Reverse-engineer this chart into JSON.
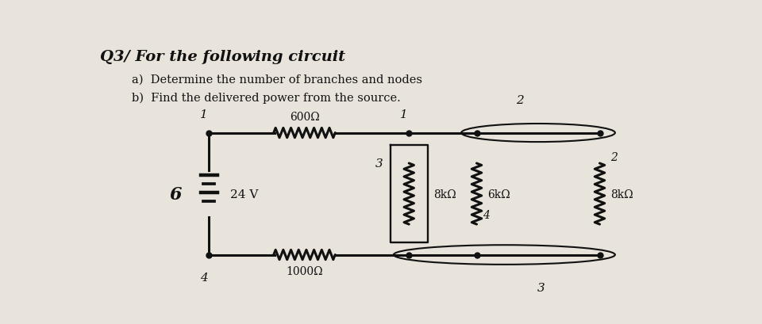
{
  "title": "Q3/ For the following circuit",
  "question_a": "a)  Determine the number of branches and nodes",
  "question_b": "b)  Find the delivered power from the source.",
  "bg_color": "#e8e4dc",
  "text_color": "#1a1a1a",
  "circuit_color": "#111111",
  "resistor_labels": {
    "R600": "600Ω",
    "R1000": "1000Ω",
    "R8k_left": "8kΩ",
    "R6k": "6kΩ",
    "R8k_right": "8kΩ"
  }
}
